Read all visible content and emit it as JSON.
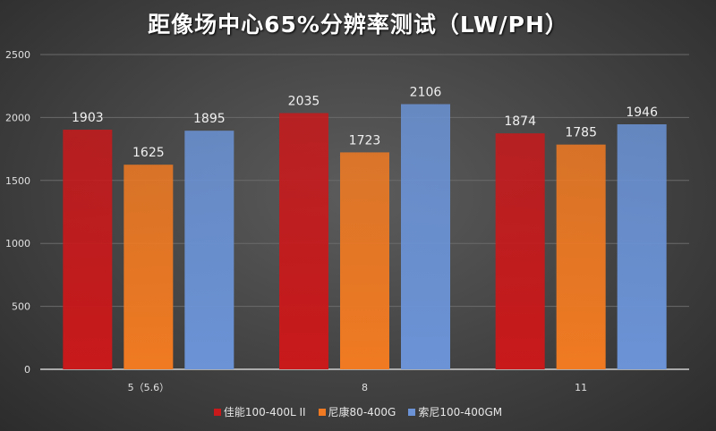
{
  "chart_data": {
    "type": "bar",
    "title": "距像场中心65%分辨率测试（LW/PH）",
    "categories": [
      "5（5.6）",
      "8",
      "11"
    ],
    "series": [
      {
        "name": "佳能100-400L II",
        "values": [
          1903,
          2035,
          1874
        ],
        "color": "#c8191b"
      },
      {
        "name": "尼康80-400G",
        "values": [
          1625,
          1723,
          1785
        ],
        "color": "#f07a22"
      },
      {
        "name": "索尼100-400GM",
        "values": [
          1895,
          2106,
          1946
        ],
        "color": "#6b93d6"
      }
    ],
    "ylim": [
      0,
      2500
    ],
    "yticks": [
      0,
      500,
      1000,
      1500,
      2000,
      2500
    ],
    "grid": true,
    "legend": "bottom",
    "xlabel": "",
    "ylabel": ""
  }
}
